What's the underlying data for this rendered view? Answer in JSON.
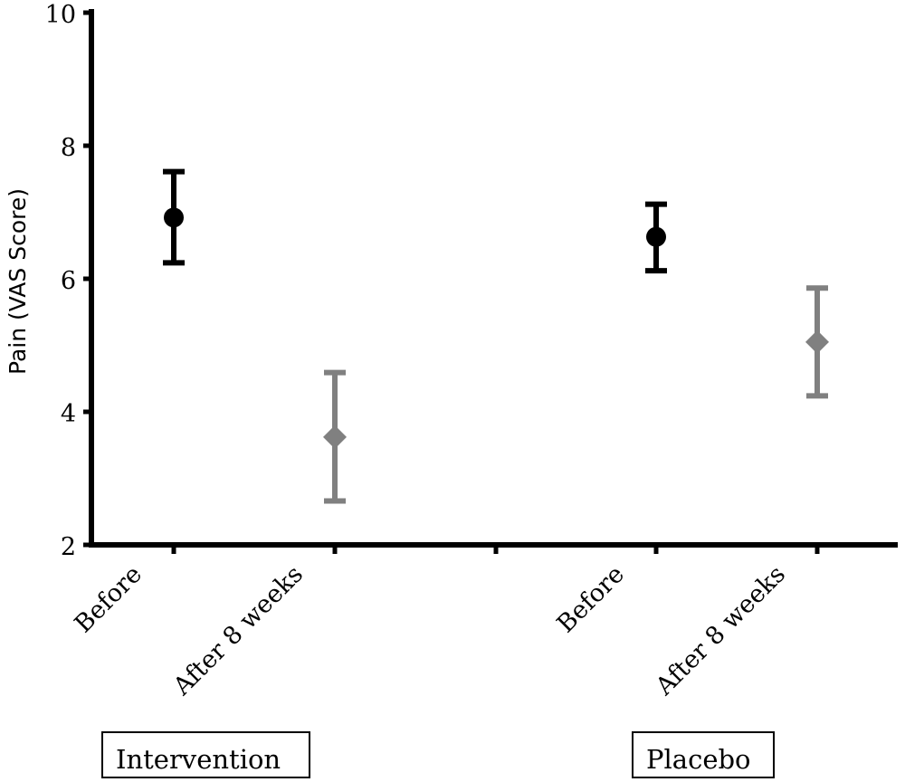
{
  "chart_data": {
    "type": "scatter",
    "title": "",
    "ylabel": "Pain (VAS Score)",
    "xlabel": "",
    "ylim": [
      2,
      10
    ],
    "yticks": [
      2,
      4,
      6,
      8,
      10
    ],
    "grid": false,
    "categories": [
      "Before",
      "After 8 weeks",
      "Before",
      "After 8 weeks"
    ],
    "groups": [
      "Intervention",
      "Placebo"
    ],
    "series": [
      {
        "name": "",
        "marker": "circle",
        "color": "#000000",
        "points": [
          {
            "category_index": 0,
            "y": 6.92,
            "low": 6.24,
            "high": 7.61
          },
          {
            "category_index": 2,
            "y": 6.63,
            "low": 6.12,
            "high": 7.12
          }
        ]
      },
      {
        "name": "",
        "marker": "diamond",
        "color": "#808080",
        "points": [
          {
            "category_index": 1,
            "y": 3.62,
            "low": 2.66,
            "high": 4.59
          },
          {
            "category_index": 3,
            "y": 5.05,
            "low": 4.24,
            "high": 5.86
          }
        ]
      }
    ]
  }
}
